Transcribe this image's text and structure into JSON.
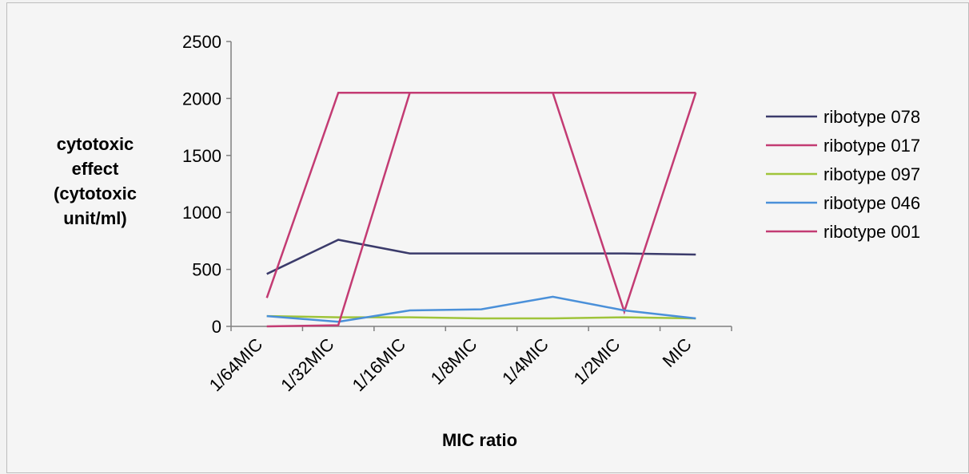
{
  "chart_data": {
    "type": "line",
    "xlabel": "MIC ratio",
    "ylabel_lines": [
      "cytotoxic",
      "effect",
      "(cytotoxic",
      "unit/ml)"
    ],
    "ylim": [
      0,
      2500
    ],
    "yticks": [
      0,
      500,
      1000,
      1500,
      2000,
      2500
    ],
    "categories": [
      "1/64MIC",
      "1/32MIC",
      "1/16MIC",
      "1/8MIC",
      "1/4MIC",
      "1/2MIC",
      "MIC"
    ],
    "legend_position": "right",
    "grid": false,
    "series": [
      {
        "name": "ribotype 078",
        "color": "#3b3b6b",
        "values": [
          460,
          760,
          640,
          640,
          640,
          640,
          630
        ]
      },
      {
        "name": "ribotype 017",
        "color": "#c33b73",
        "values": [
          250,
          2050,
          2050,
          2050,
          2050,
          130,
          2050
        ]
      },
      {
        "name": "ribotype 097",
        "color": "#9fc43a",
        "values": [
          90,
          80,
          80,
          70,
          70,
          80,
          70
        ]
      },
      {
        "name": "ribotype 046",
        "color": "#4a90d9",
        "values": [
          90,
          40,
          140,
          150,
          260,
          140,
          70
        ]
      },
      {
        "name": "ribotype 001",
        "color": "#c33b73",
        "values": [
          0,
          10,
          2050,
          2050,
          2050,
          2050,
          2050
        ]
      }
    ]
  }
}
